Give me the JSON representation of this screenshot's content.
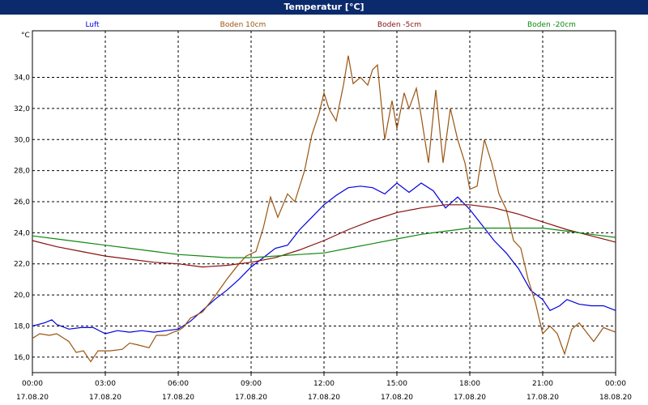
{
  "window": {
    "title": "Temperatur [°C]"
  },
  "chart_data": {
    "type": "line",
    "title": "Temperatur [°C]",
    "ylabel": "°C",
    "xlabel": "",
    "ylim": [
      15,
      37
    ],
    "xlim": [
      0,
      24
    ],
    "grid": true,
    "legend_placement": "top",
    "x_ticks": [
      {
        "time": "00:00",
        "date": "17.08.20",
        "hour": 0
      },
      {
        "time": "03:00",
        "date": "17.08.20",
        "hour": 3
      },
      {
        "time": "06:00",
        "date": "17.08.20",
        "hour": 6
      },
      {
        "time": "09:00",
        "date": "17.08.20",
        "hour": 9
      },
      {
        "time": "12:00",
        "date": "17.08.20",
        "hour": 12
      },
      {
        "time": "15:00",
        "date": "17.08.20",
        "hour": 15
      },
      {
        "time": "18:00",
        "date": "17.08.20",
        "hour": 18
      },
      {
        "time": "21:00",
        "date": "17.08.20",
        "hour": 21
      },
      {
        "time": "00:00",
        "date": "18.08.20",
        "hour": 24
      }
    ],
    "y_ticks": [
      "16,0",
      "18,0",
      "20,0",
      "22,0",
      "24,0",
      "26,0",
      "28,0",
      "30,0",
      "32,0",
      "34,0"
    ],
    "y_tick_values": [
      16,
      18,
      20,
      22,
      24,
      26,
      28,
      30,
      32,
      34
    ],
    "series": [
      {
        "name": "Luft",
        "color": "#0000dd",
        "points": [
          [
            0,
            18.0
          ],
          [
            0.5,
            18.2
          ],
          [
            0.8,
            18.4
          ],
          [
            1.0,
            18.1
          ],
          [
            1.5,
            17.8
          ],
          [
            2.0,
            17.9
          ],
          [
            2.5,
            17.9
          ],
          [
            3.0,
            17.5
          ],
          [
            3.5,
            17.7
          ],
          [
            4.0,
            17.6
          ],
          [
            4.5,
            17.7
          ],
          [
            5.0,
            17.6
          ],
          [
            5.5,
            17.7
          ],
          [
            6.0,
            17.8
          ],
          [
            6.5,
            18.3
          ],
          [
            7.0,
            19.0
          ],
          [
            7.5,
            19.7
          ],
          [
            8.0,
            20.3
          ],
          [
            8.5,
            21.0
          ],
          [
            9.0,
            21.8
          ],
          [
            9.5,
            22.4
          ],
          [
            10.0,
            23.0
          ],
          [
            10.5,
            23.2
          ],
          [
            11.0,
            24.2
          ],
          [
            11.5,
            25.0
          ],
          [
            12.0,
            25.8
          ],
          [
            12.5,
            26.4
          ],
          [
            13.0,
            26.9
          ],
          [
            13.5,
            27.0
          ],
          [
            14.0,
            26.9
          ],
          [
            14.5,
            26.5
          ],
          [
            15.0,
            27.2
          ],
          [
            15.5,
            26.6
          ],
          [
            16.0,
            27.2
          ],
          [
            16.5,
            26.7
          ],
          [
            17.0,
            25.6
          ],
          [
            17.5,
            26.3
          ],
          [
            18.0,
            25.5
          ],
          [
            18.5,
            24.5
          ],
          [
            19.0,
            23.5
          ],
          [
            19.5,
            22.7
          ],
          [
            20.0,
            21.7
          ],
          [
            20.5,
            20.3
          ],
          [
            21.0,
            19.7
          ],
          [
            21.3,
            19.0
          ],
          [
            21.7,
            19.3
          ],
          [
            22.0,
            19.7
          ],
          [
            22.5,
            19.4
          ],
          [
            23.0,
            19.3
          ],
          [
            23.5,
            19.3
          ],
          [
            24.0,
            19.0
          ]
        ]
      },
      {
        "name": "Boden 10cm",
        "color": "#995511",
        "points": [
          [
            0,
            17.2
          ],
          [
            0.3,
            17.5
          ],
          [
            0.7,
            17.4
          ],
          [
            1.0,
            17.5
          ],
          [
            1.5,
            17.0
          ],
          [
            1.8,
            16.3
          ],
          [
            2.1,
            16.4
          ],
          [
            2.4,
            15.7
          ],
          [
            2.7,
            16.4
          ],
          [
            3.2,
            16.4
          ],
          [
            3.7,
            16.5
          ],
          [
            4.0,
            16.9
          ],
          [
            4.3,
            16.8
          ],
          [
            4.8,
            16.6
          ],
          [
            5.1,
            17.4
          ],
          [
            5.5,
            17.4
          ],
          [
            5.8,
            17.6
          ],
          [
            6.0,
            17.7
          ],
          [
            6.2,
            17.9
          ],
          [
            6.5,
            18.5
          ],
          [
            7.0,
            18.9
          ],
          [
            7.5,
            19.9
          ],
          [
            8.0,
            21.0
          ],
          [
            8.5,
            22.0
          ],
          [
            8.8,
            22.5
          ],
          [
            9.2,
            22.8
          ],
          [
            9.5,
            24.3
          ],
          [
            9.8,
            26.3
          ],
          [
            10.1,
            25.0
          ],
          [
            10.5,
            26.5
          ],
          [
            10.8,
            26.0
          ],
          [
            11.2,
            28.0
          ],
          [
            11.5,
            30.3
          ],
          [
            11.8,
            31.7
          ],
          [
            12.0,
            33.0
          ],
          [
            12.2,
            32.0
          ],
          [
            12.5,
            31.2
          ],
          [
            12.8,
            33.5
          ],
          [
            13.0,
            35.4
          ],
          [
            13.2,
            33.6
          ],
          [
            13.5,
            34.0
          ],
          [
            13.8,
            33.5
          ],
          [
            14.0,
            34.5
          ],
          [
            14.2,
            34.8
          ],
          [
            14.5,
            30.0
          ],
          [
            14.8,
            32.5
          ],
          [
            15.0,
            30.7
          ],
          [
            15.3,
            33.0
          ],
          [
            15.5,
            32.0
          ],
          [
            15.8,
            33.3
          ],
          [
            16.0,
            31.5
          ],
          [
            16.3,
            28.5
          ],
          [
            16.6,
            33.2
          ],
          [
            16.9,
            28.5
          ],
          [
            17.2,
            32.0
          ],
          [
            17.5,
            30.0
          ],
          [
            17.8,
            28.5
          ],
          [
            18.0,
            26.8
          ],
          [
            18.3,
            27.0
          ],
          [
            18.6,
            30.0
          ],
          [
            18.9,
            28.5
          ],
          [
            19.2,
            26.5
          ],
          [
            19.5,
            25.5
          ],
          [
            19.8,
            23.5
          ],
          [
            20.1,
            23.0
          ],
          [
            20.4,
            21.0
          ],
          [
            20.7,
            19.5
          ],
          [
            21.0,
            17.5
          ],
          [
            21.3,
            18.0
          ],
          [
            21.6,
            17.5
          ],
          [
            21.9,
            16.2
          ],
          [
            22.2,
            17.8
          ],
          [
            22.5,
            18.2
          ],
          [
            22.8,
            17.6
          ],
          [
            23.1,
            17.0
          ],
          [
            23.5,
            17.9
          ],
          [
            24.0,
            17.6
          ]
        ]
      },
      {
        "name": "Boden -5cm",
        "color": "#881111",
        "points": [
          [
            0,
            23.5
          ],
          [
            1,
            23.1
          ],
          [
            2,
            22.8
          ],
          [
            3,
            22.5
          ],
          [
            4,
            22.3
          ],
          [
            5,
            22.1
          ],
          [
            6,
            22.0
          ],
          [
            7,
            21.8
          ],
          [
            8,
            21.9
          ],
          [
            9,
            22.1
          ],
          [
            10,
            22.4
          ],
          [
            11,
            22.9
          ],
          [
            12,
            23.5
          ],
          [
            13,
            24.2
          ],
          [
            14,
            24.8
          ],
          [
            15,
            25.3
          ],
          [
            16,
            25.6
          ],
          [
            17,
            25.8
          ],
          [
            18,
            25.8
          ],
          [
            19,
            25.6
          ],
          [
            20,
            25.2
          ],
          [
            21,
            24.7
          ],
          [
            22,
            24.2
          ],
          [
            23,
            23.8
          ],
          [
            24,
            23.4
          ]
        ]
      },
      {
        "name": "Boden -20cm",
        "color": "#118811",
        "points": [
          [
            0,
            23.8
          ],
          [
            1,
            23.6
          ],
          [
            2,
            23.4
          ],
          [
            3,
            23.2
          ],
          [
            4,
            23.0
          ],
          [
            5,
            22.8
          ],
          [
            6,
            22.6
          ],
          [
            7,
            22.5
          ],
          [
            8,
            22.4
          ],
          [
            9,
            22.4
          ],
          [
            10,
            22.5
          ],
          [
            11,
            22.6
          ],
          [
            12,
            22.7
          ],
          [
            13,
            23.0
          ],
          [
            14,
            23.3
          ],
          [
            15,
            23.6
          ],
          [
            16,
            23.9
          ],
          [
            17,
            24.1
          ],
          [
            18,
            24.3
          ],
          [
            19,
            24.3
          ],
          [
            20,
            24.3
          ],
          [
            21,
            24.3
          ],
          [
            22,
            24.1
          ],
          [
            23,
            23.9
          ],
          [
            24,
            23.7
          ]
        ]
      }
    ]
  }
}
